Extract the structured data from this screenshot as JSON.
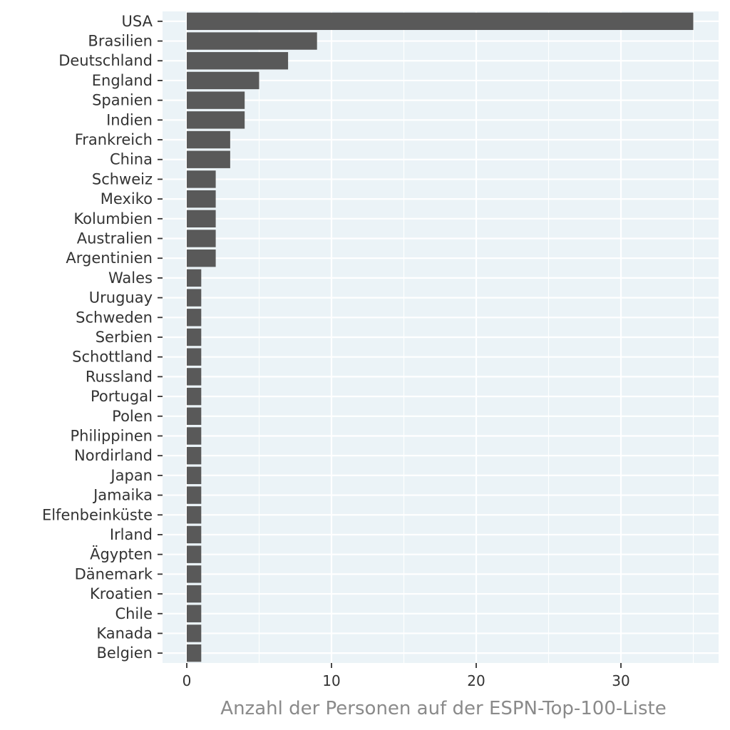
{
  "chart_data": {
    "type": "bar",
    "orientation": "horizontal",
    "title": "",
    "xlabel": "Anzahl der Personen auf der ESPN-Top-100-Liste",
    "ylabel": "",
    "xlim": [
      0,
      36.7
    ],
    "xticks": [
      0,
      10,
      20,
      30
    ],
    "grid": true,
    "categories": [
      "USA",
      "Brasilien",
      "Deutschland",
      "England",
      "Spanien",
      "Indien",
      "Frankreich",
      "China",
      "Schweiz",
      "Mexiko",
      "Kolumbien",
      "Australien",
      "Argentinien",
      "Wales",
      "Uruguay",
      "Schweden",
      "Serbien",
      "Schottland",
      "Russland",
      "Portugal",
      "Polen",
      "Philippinen",
      "Nordirland",
      "Japan",
      "Jamaika",
      "Elfenbeinküste",
      "Irland",
      "Ägypten",
      "Dänemark",
      "Kroatien",
      "Chile",
      "Kanada",
      "Belgien"
    ],
    "values": [
      35,
      9,
      7,
      5,
      4,
      4,
      3,
      3,
      2,
      2,
      2,
      2,
      2,
      1,
      1,
      1,
      1,
      1,
      1,
      1,
      1,
      1,
      1,
      1,
      1,
      1,
      1,
      1,
      1,
      1,
      1,
      1,
      1
    ],
    "colors": {
      "bar": "#595959",
      "panel": "#ebf3f7",
      "grid": "#ffffff",
      "text": "#333333",
      "axis_title": "#8a8a8a"
    }
  }
}
